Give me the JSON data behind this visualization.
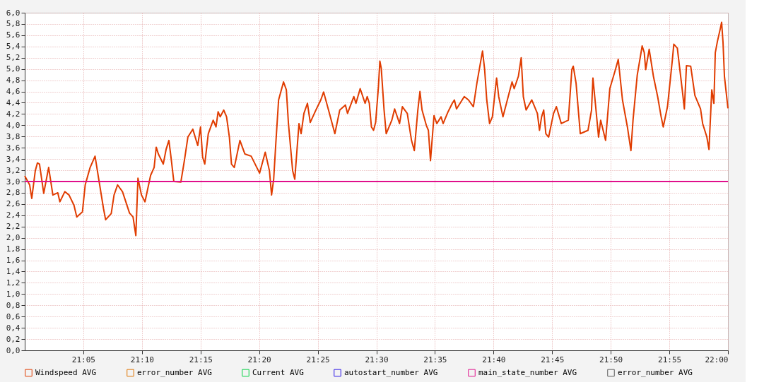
{
  "chart_data": {
    "type": "line",
    "xlim": [
      21,
      22
    ],
    "ylim": [
      0,
      6
    ],
    "xticks": [
      {
        "value": 21.0833,
        "label": "21:05"
      },
      {
        "value": 21.1667,
        "label": "21:10"
      },
      {
        "value": 21.25,
        "label": "21:15"
      },
      {
        "value": 21.3333,
        "label": "21:20"
      },
      {
        "value": 21.4167,
        "label": "21:25"
      },
      {
        "value": 21.5,
        "label": "21:30"
      },
      {
        "value": 21.5833,
        "label": "21:35"
      },
      {
        "value": 21.6667,
        "label": "21:40"
      },
      {
        "value": 21.75,
        "label": "21:45"
      },
      {
        "value": 21.8333,
        "label": "21:50"
      },
      {
        "value": 21.9167,
        "label": "21:55"
      },
      {
        "value": 22,
        "label": "22:00"
      }
    ],
    "yticks": [
      {
        "value": 0,
        "label": "0,0"
      },
      {
        "value": 0.2,
        "label": "0,2"
      },
      {
        "value": 0.4,
        "label": "0,4"
      },
      {
        "value": 0.6,
        "label": "0,6"
      },
      {
        "value": 0.8,
        "label": "0,8"
      },
      {
        "value": 1,
        "label": "1,0"
      },
      {
        "value": 1.2,
        "label": "1,2"
      },
      {
        "value": 1.4,
        "label": "1,4"
      },
      {
        "value": 1.6,
        "label": "1,6"
      },
      {
        "value": 1.8,
        "label": "1,8"
      },
      {
        "value": 2,
        "label": "2,0"
      },
      {
        "value": 2.2,
        "label": "2,2"
      },
      {
        "value": 2.4,
        "label": "2,4"
      },
      {
        "value": 2.6,
        "label": "2,6"
      },
      {
        "value": 2.8,
        "label": "2,8"
      },
      {
        "value": 3,
        "label": "3,0"
      },
      {
        "value": 3.2,
        "label": "3,2"
      },
      {
        "value": 3.4,
        "label": "3,4"
      },
      {
        "value": 3.6,
        "label": "3,6"
      },
      {
        "value": 3.8,
        "label": "3,8"
      },
      {
        "value": 4,
        "label": "4,0"
      },
      {
        "value": 4.2,
        "label": "4,2"
      },
      {
        "value": 4.4,
        "label": "4,4"
      },
      {
        "value": 4.6,
        "label": "4,6"
      },
      {
        "value": 4.8,
        "label": "4,8"
      },
      {
        "value": 5,
        "label": "5,0"
      },
      {
        "value": 5.2,
        "label": "5,2"
      },
      {
        "value": 5.4,
        "label": "5,4"
      },
      {
        "value": 5.6,
        "label": "5,6"
      },
      {
        "value": 5.8,
        "label": "5,8"
      },
      {
        "value": 6,
        "label": "6,0"
      }
    ],
    "grid": true,
    "legend": "bottom",
    "line_style": "solid",
    "marker": "none",
    "series": [
      {
        "name": "Windspeed AVG",
        "color": "#e03c00",
        "x": [
          21.0,
          21.007,
          21.01,
          21.015,
          21.018,
          21.021,
          21.027,
          21.034,
          21.04,
          21.047,
          21.05,
          21.057,
          21.063,
          21.07,
          21.074,
          21.082,
          21.086,
          21.093,
          21.1,
          21.105,
          21.112,
          21.115,
          21.123,
          21.127,
          21.132,
          21.139,
          21.149,
          21.154,
          21.158,
          21.161,
          21.166,
          21.171,
          21.179,
          21.184,
          21.187,
          21.19,
          21.197,
          21.201,
          21.205,
          21.208,
          21.212,
          21.222,
          21.227,
          21.232,
          21.239,
          21.246,
          21.25,
          21.253,
          21.256,
          21.261,
          21.268,
          21.272,
          21.275,
          21.278,
          21.283,
          21.287,
          21.291,
          21.294,
          21.298,
          21.306,
          21.313,
          21.322,
          21.33,
          21.334,
          21.342,
          21.348,
          21.351,
          21.354,
          21.357,
          21.361,
          21.368,
          21.372,
          21.375,
          21.381,
          21.384,
          21.39,
          21.393,
          21.397,
          21.402,
          21.406,
          21.414,
          21.421,
          21.425,
          21.432,
          21.441,
          21.448,
          21.456,
          21.459,
          21.468,
          21.471,
          21.477,
          21.484,
          21.487,
          21.49,
          21.493,
          21.496,
          21.499,
          21.503,
          21.505,
          21.507,
          21.511,
          21.514,
          21.522,
          21.526,
          21.533,
          21.537,
          21.544,
          21.55,
          21.554,
          21.559,
          21.562,
          21.565,
          21.571,
          21.574,
          21.577,
          21.582,
          21.586,
          21.592,
          21.595,
          21.602,
          21.608,
          21.611,
          21.614,
          21.625,
          21.631,
          21.638,
          21.643,
          21.651,
          21.654,
          21.657,
          21.661,
          21.665,
          21.671,
          21.674,
          21.68,
          21.69,
          21.693,
          21.696,
          21.702,
          21.706,
          21.709,
          21.713,
          21.721,
          21.729,
          21.732,
          21.735,
          21.738,
          21.741,
          21.745,
          21.752,
          21.756,
          21.763,
          21.773,
          21.778,
          21.78,
          21.784,
          21.79,
          21.801,
          21.806,
          21.808,
          21.811,
          21.816,
          21.819,
          21.826,
          21.832,
          21.84,
          21.844,
          21.85,
          21.857,
          21.862,
          21.865,
          21.871,
          21.878,
          21.881,
          21.883,
          21.888,
          21.894,
          21.9,
          21.905,
          21.908,
          21.914,
          21.921,
          21.923,
          21.928,
          21.935,
          21.938,
          21.941,
          21.947,
          21.953,
          21.961,
          21.964,
          21.97,
          21.973,
          21.977,
          21.98,
          21.982,
          21.985,
          21.989,
          21.991,
          21.993,
          21.995,
          22.0
        ],
        "values": [
          3.1,
          2.94,
          2.7,
          3.19,
          3.33,
          3.31,
          2.79,
          3.25,
          2.76,
          2.8,
          2.64,
          2.82,
          2.76,
          2.58,
          2.37,
          2.46,
          2.94,
          3.25,
          3.45,
          3.06,
          2.52,
          2.32,
          2.43,
          2.76,
          2.94,
          2.82,
          2.44,
          2.37,
          2.04,
          3.06,
          2.76,
          2.64,
          3.11,
          3.25,
          3.61,
          3.49,
          3.31,
          3.57,
          3.73,
          3.43,
          3.0,
          2.99,
          3.37,
          3.79,
          3.93,
          3.64,
          3.97,
          3.43,
          3.31,
          3.85,
          4.09,
          3.97,
          4.24,
          4.15,
          4.27,
          4.15,
          3.79,
          3.31,
          3.25,
          3.73,
          3.49,
          3.45,
          3.25,
          3.15,
          3.52,
          3.19,
          2.76,
          3.04,
          3.67,
          4.45,
          4.77,
          4.63,
          4.03,
          3.19,
          3.04,
          4.03,
          3.85,
          4.21,
          4.39,
          4.05,
          4.27,
          4.45,
          4.59,
          4.27,
          3.85,
          4.27,
          4.36,
          4.21,
          4.51,
          4.39,
          4.65,
          4.39,
          4.51,
          4.39,
          3.97,
          3.91,
          4.05,
          4.69,
          5.14,
          5.01,
          4.27,
          3.85,
          4.09,
          4.29,
          4.03,
          4.33,
          4.21,
          3.73,
          3.55,
          4.27,
          4.6,
          4.27,
          4.0,
          3.91,
          3.37,
          4.17,
          4.03,
          4.15,
          4.03,
          4.24,
          4.39,
          4.45,
          4.29,
          4.51,
          4.45,
          4.33,
          4.75,
          5.32,
          4.99,
          4.45,
          4.03,
          4.15,
          4.84,
          4.51,
          4.15,
          4.63,
          4.77,
          4.65,
          4.87,
          5.2,
          4.51,
          4.27,
          4.45,
          4.21,
          3.91,
          4.15,
          4.27,
          3.85,
          3.79,
          4.21,
          4.33,
          4.03,
          4.09,
          4.99,
          5.05,
          4.75,
          3.85,
          3.91,
          4.27,
          4.84,
          4.45,
          3.79,
          4.09,
          3.73,
          4.65,
          4.99,
          5.17,
          4.45,
          3.97,
          3.55,
          4.09,
          4.89,
          5.41,
          5.29,
          4.99,
          5.35,
          4.87,
          4.51,
          4.15,
          3.97,
          4.33,
          5.17,
          5.44,
          5.37,
          4.63,
          4.29,
          5.06,
          5.05,
          4.53,
          4.29,
          4.03,
          3.79,
          3.57,
          4.63,
          4.39,
          5.29,
          5.49,
          5.71,
          5.83,
          5.47,
          4.87,
          4.3
        ]
      },
      {
        "name": "error_number AVG",
        "color": "#e07400"
      },
      {
        "name": "Current AVG",
        "color": "#00d040"
      },
      {
        "name": "autostart_number AVG",
        "color": "#2a14e6"
      },
      {
        "name": "main_state_number AVG",
        "color": "#e0108c",
        "x": [
          21,
          22
        ],
        "values": [
          3,
          3
        ]
      },
      {
        "name": "error_number AVG",
        "color": "#5a5a5a"
      }
    ]
  }
}
